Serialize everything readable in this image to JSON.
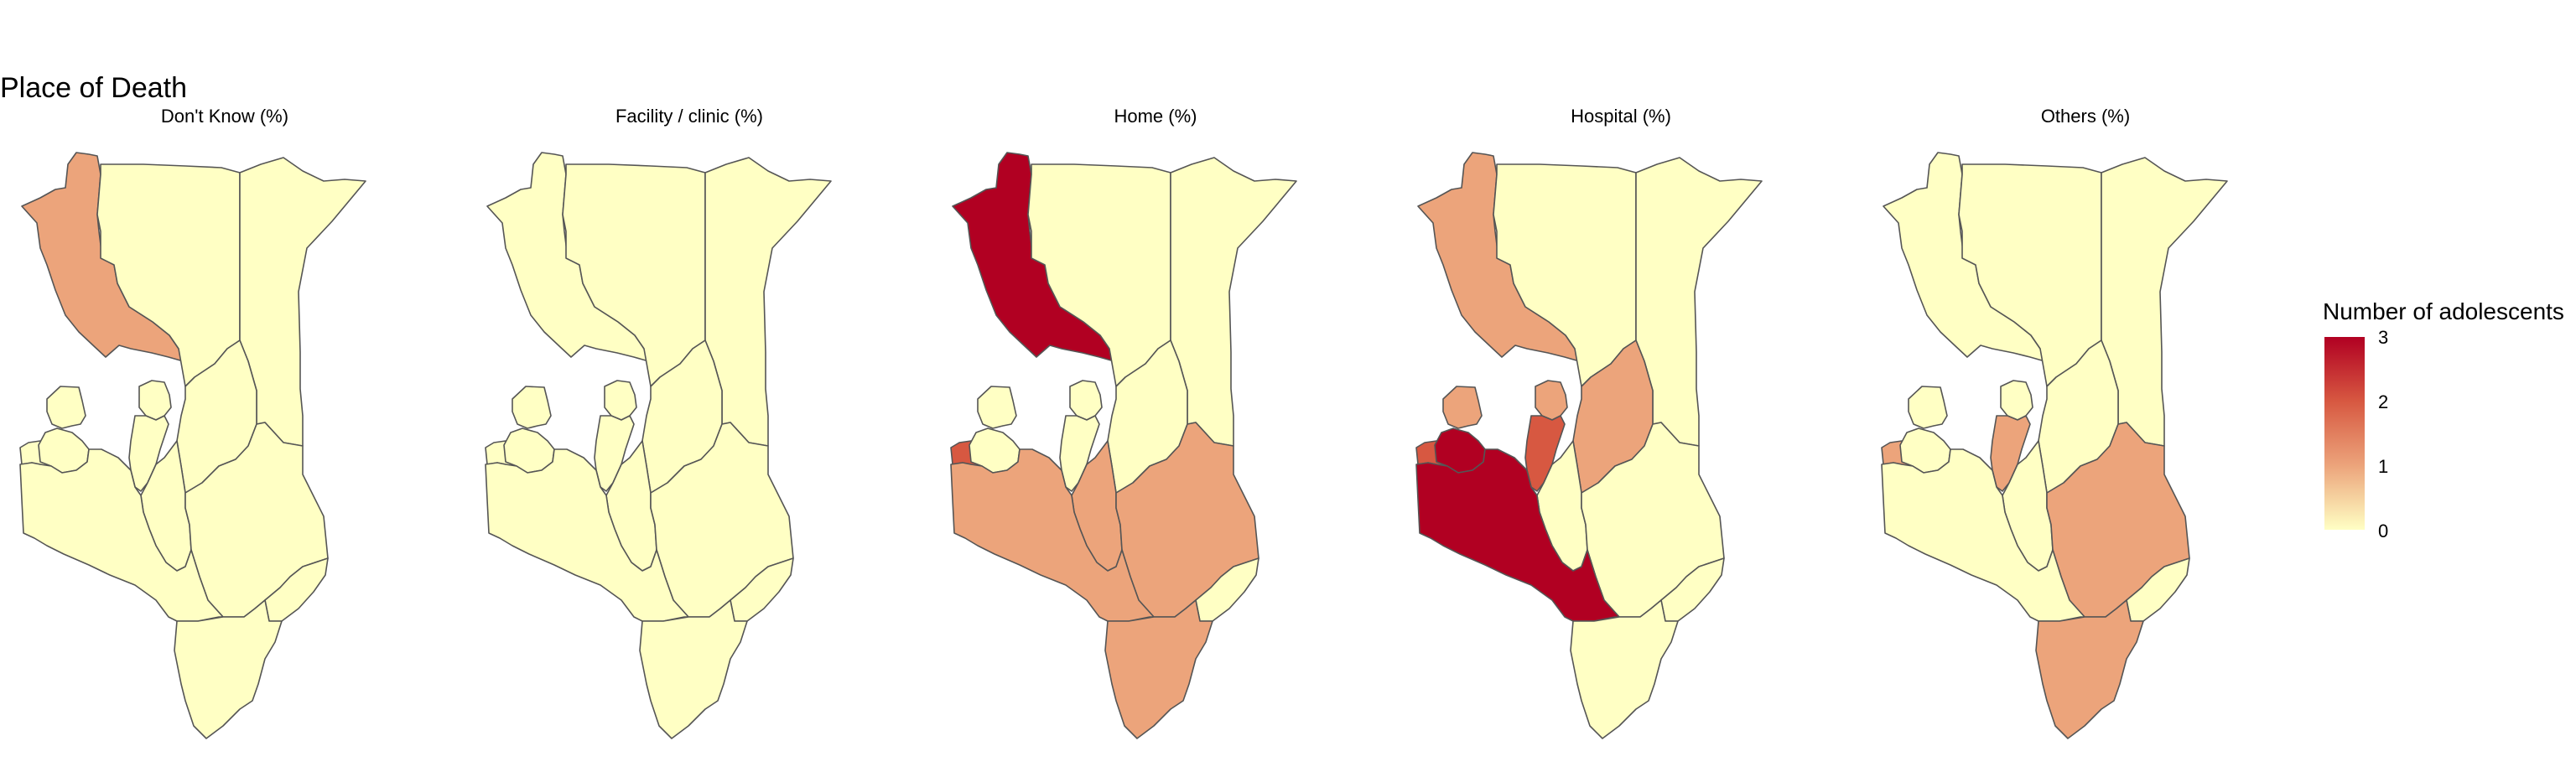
{
  "title": "Place of Death",
  "chart_data": {
    "type": "choropleth",
    "panels": [
      {
        "title": "Don't Know (%)",
        "values": {
          "Turkana": 1,
          "Marsabit": 0,
          "Wajir-Mandera": 0,
          "West-Pokot": 0,
          "Samburu": 0,
          "Isiolo": 0,
          "Garissa": 0,
          "Lake-West": 0,
          "West-Kenya": 0,
          "Central-Highlands": 0,
          "Kitui": 0,
          "Tana-River": 0,
          "South-Rift": 0,
          "Lamu": 0,
          "Kwale-Kilifi": 0
        }
      },
      {
        "title": "Facility / clinic (%)",
        "values": {
          "Turkana": 0,
          "Marsabit": 0,
          "Wajir-Mandera": 0,
          "West-Pokot": 0,
          "Samburu": 0,
          "Isiolo": 0,
          "Garissa": 0,
          "Lake-West": 0,
          "West-Kenya": 0,
          "Central-Highlands": 0,
          "Kitui": 0,
          "Tana-River": 0,
          "South-Rift": 0,
          "Lamu": 0,
          "Kwale-Kilifi": 0
        }
      },
      {
        "title": "Home (%)",
        "values": {
          "Turkana": 3,
          "Marsabit": 0,
          "Wajir-Mandera": 0,
          "West-Pokot": 0,
          "Samburu": 0,
          "Isiolo": 0,
          "Garissa": 0,
          "Lake-West": 2,
          "West-Kenya": 0,
          "Central-Highlands": 0,
          "Kitui": 1,
          "Tana-River": 1,
          "South-Rift": 1,
          "Lamu": 0,
          "Kwale-Kilifi": 1
        }
      },
      {
        "title": "Hospital (%)",
        "values": {
          "Turkana": 1,
          "Marsabit": 0,
          "Wajir-Mandera": 0,
          "West-Pokot": 1,
          "Samburu": 1,
          "Isiolo": 1,
          "Garissa": 0,
          "Lake-West": 2,
          "West-Kenya": 3,
          "Central-Highlands": 2,
          "Kitui": 0,
          "Tana-River": 0,
          "South-Rift": 3,
          "Lamu": 0,
          "Kwale-Kilifi": 0
        }
      },
      {
        "title": "Others (%)",
        "values": {
          "Turkana": 0,
          "Marsabit": 0,
          "Wajir-Mandera": 0,
          "West-Pokot": 0,
          "Samburu": 0,
          "Isiolo": 0,
          "Garissa": 0,
          "Lake-West": 1,
          "West-Kenya": 0,
          "Central-Highlands": 1,
          "Kitui": 0,
          "Tana-River": 1,
          "South-Rift": 0,
          "Lamu": 0,
          "Kwale-Kilifi": 1
        }
      }
    ],
    "legend": {
      "title": "Number of adolescents",
      "ticks": [
        "3",
        "2",
        "1",
        "0"
      ],
      "range": [
        0,
        3
      ],
      "placement": "right"
    },
    "colors": {
      "0": "#ffffc4",
      "1": "#eca47b",
      "2": "#d75841",
      "3": "#b10022",
      "border": "#555555"
    }
  }
}
